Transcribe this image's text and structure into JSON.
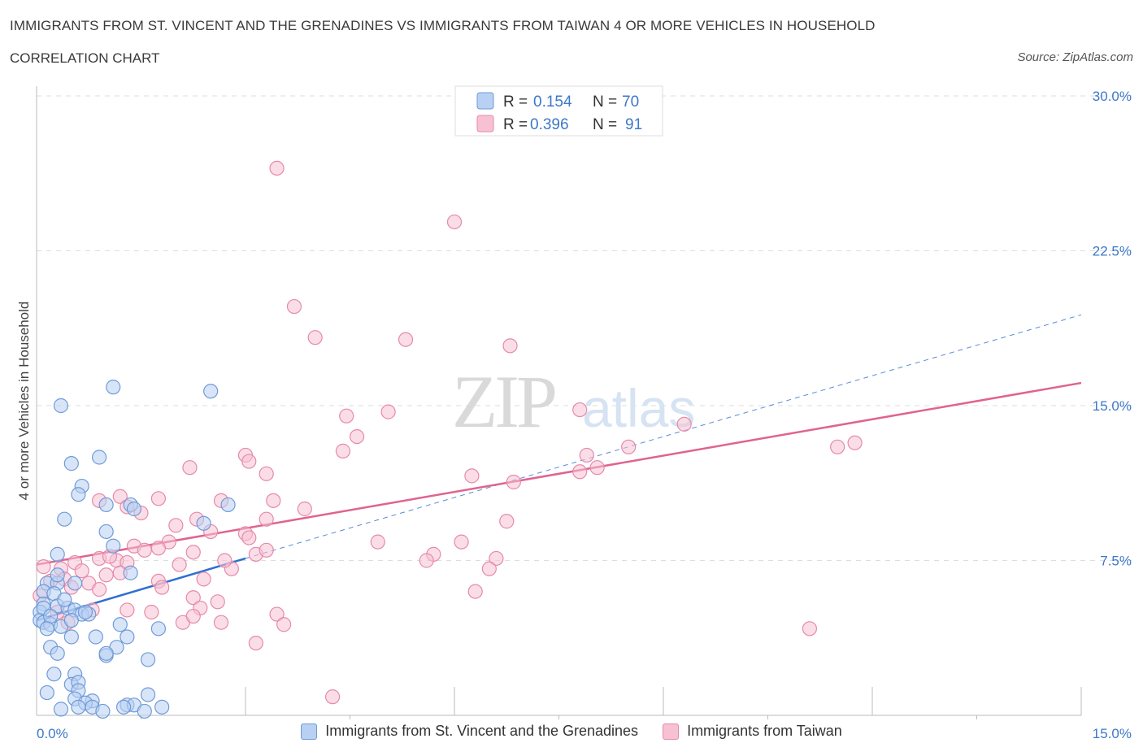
{
  "header": {
    "title": "IMMIGRANTS FROM ST. VINCENT AND THE GRENADINES VS IMMIGRANTS FROM TAIWAN 4 OR MORE VEHICLES IN HOUSEHOLD",
    "subtitle": "CORRELATION CHART",
    "source": "Source: ZipAtlas.com"
  },
  "watermark": {
    "zip": "ZIP",
    "atlas": "atlas"
  },
  "colors": {
    "blue_fill": "#b8d0f3",
    "blue_stroke": "#6f9bd8",
    "blue_line": "#2f6fd0",
    "pink_fill": "#f7c1d3",
    "pink_stroke": "#e58aaa",
    "pink_line": "#e0638f",
    "tick": "#3d78c8",
    "grid": "#dddddd"
  },
  "chart_data": {
    "type": "scatter",
    "xlabel": "",
    "ylabel": "4 or more Vehicles in Household",
    "xlim": [
      0,
      15
    ],
    "ylim": [
      0,
      30
    ],
    "x_tick_labels": [
      "0.0%",
      "15.0%"
    ],
    "y_ticks": [
      7.5,
      15,
      22.5,
      30
    ],
    "y_tick_labels": [
      "7.5%",
      "15.0%",
      "22.5%",
      "30.0%"
    ],
    "grid": "horizontal dashed",
    "legend": [
      {
        "r_label": "R =",
        "r_value": "0.154",
        "n_label": "N =",
        "n_value": "70"
      },
      {
        "r_label": "R =",
        "r_value": "0.396",
        "n_label": "N =",
        "n_value": "91"
      }
    ],
    "series": [
      {
        "name": "Immigrants from St. Vincent and the Grenadines",
        "color": "#6f9bd8",
        "trend": {
          "x": [
            0.0,
            3.0
          ],
          "y": [
            4.6,
            7.6
          ],
          "extended_to": [
            15.0,
            19.4
          ]
        },
        "points": [
          [
            0.35,
            15.0
          ],
          [
            1.1,
            15.9
          ],
          [
            2.5,
            15.7
          ],
          [
            0.5,
            12.2
          ],
          [
            0.9,
            12.5
          ],
          [
            0.65,
            11.1
          ],
          [
            0.6,
            10.7
          ],
          [
            1.0,
            10.2
          ],
          [
            1.35,
            10.2
          ],
          [
            2.75,
            10.2
          ],
          [
            1.4,
            10.0
          ],
          [
            0.4,
            9.5
          ],
          [
            2.4,
            9.3
          ],
          [
            1.0,
            8.9
          ],
          [
            1.1,
            8.2
          ],
          [
            0.3,
            7.8
          ],
          [
            0.15,
            6.4
          ],
          [
            0.3,
            6.4
          ],
          [
            0.55,
            6.4
          ],
          [
            0.1,
            6.0
          ],
          [
            0.25,
            5.9
          ],
          [
            1.35,
            6.9
          ],
          [
            0.1,
            5.4
          ],
          [
            0.3,
            5.3
          ],
          [
            0.45,
            5.2
          ],
          [
            0.55,
            5.1
          ],
          [
            0.05,
            5.0
          ],
          [
            0.65,
            4.9
          ],
          [
            0.75,
            4.9
          ],
          [
            0.05,
            4.6
          ],
          [
            0.1,
            4.5
          ],
          [
            0.2,
            4.4
          ],
          [
            0.35,
            4.3
          ],
          [
            1.2,
            4.4
          ],
          [
            1.75,
            4.2
          ],
          [
            0.5,
            3.8
          ],
          [
            0.85,
            3.8
          ],
          [
            1.3,
            3.8
          ],
          [
            0.2,
            3.3
          ],
          [
            1.15,
            3.3
          ],
          [
            0.3,
            3.0
          ],
          [
            1.0,
            2.9
          ],
          [
            1.6,
            2.7
          ],
          [
            0.25,
            2.0
          ],
          [
            0.55,
            2.0
          ],
          [
            0.5,
            1.5
          ],
          [
            0.6,
            1.6
          ],
          [
            0.6,
            1.2
          ],
          [
            0.15,
            1.1
          ],
          [
            0.55,
            0.8
          ],
          [
            0.8,
            0.7
          ],
          [
            1.6,
            1.0
          ],
          [
            0.7,
            0.6
          ],
          [
            0.6,
            0.4
          ],
          [
            0.35,
            0.3
          ],
          [
            0.8,
            0.4
          ],
          [
            1.3,
            0.5
          ],
          [
            1.4,
            0.5
          ],
          [
            1.25,
            0.4
          ],
          [
            1.8,
            0.4
          ],
          [
            0.95,
            0.2
          ],
          [
            1.55,
            0.2
          ],
          [
            0.1,
            5.2
          ],
          [
            0.2,
            4.8
          ],
          [
            0.4,
            5.6
          ],
          [
            0.7,
            5.0
          ],
          [
            0.15,
            4.2
          ],
          [
            0.5,
            4.6
          ],
          [
            1.0,
            3.0
          ],
          [
            0.3,
            6.8
          ]
        ]
      },
      {
        "name": "Immigrants from Taiwan",
        "color": "#e58aaa",
        "trend": {
          "x": [
            0.0,
            15.0
          ],
          "y": [
            7.3,
            16.1
          ]
        },
        "points": [
          [
            3.45,
            26.5
          ],
          [
            6.0,
            23.9
          ],
          [
            3.7,
            19.8
          ],
          [
            4.0,
            18.3
          ],
          [
            5.3,
            18.2
          ],
          [
            6.8,
            17.9
          ],
          [
            7.8,
            14.8
          ],
          [
            9.3,
            14.1
          ],
          [
            4.45,
            14.5
          ],
          [
            5.05,
            14.7
          ],
          [
            4.6,
            13.5
          ],
          [
            4.4,
            12.8
          ],
          [
            7.9,
            12.6
          ],
          [
            8.5,
            13.0
          ],
          [
            11.5,
            13.0
          ],
          [
            11.75,
            13.2
          ],
          [
            3.0,
            12.6
          ],
          [
            3.05,
            12.3
          ],
          [
            2.2,
            12.0
          ],
          [
            3.3,
            11.7
          ],
          [
            6.25,
            11.6
          ],
          [
            7.8,
            11.8
          ],
          [
            8.05,
            12.0
          ],
          [
            6.85,
            11.3
          ],
          [
            0.9,
            10.4
          ],
          [
            1.2,
            10.6
          ],
          [
            1.3,
            10.1
          ],
          [
            1.75,
            10.5
          ],
          [
            2.65,
            10.4
          ],
          [
            3.4,
            10.4
          ],
          [
            3.85,
            10.0
          ],
          [
            1.5,
            9.8
          ],
          [
            2.3,
            9.5
          ],
          [
            3.3,
            9.5
          ],
          [
            6.75,
            9.4
          ],
          [
            2.0,
            9.2
          ],
          [
            2.5,
            8.9
          ],
          [
            3.0,
            8.8
          ],
          [
            3.05,
            8.6
          ],
          [
            1.9,
            8.4
          ],
          [
            4.9,
            8.4
          ],
          [
            6.1,
            8.4
          ],
          [
            1.4,
            8.2
          ],
          [
            1.55,
            8.0
          ],
          [
            2.25,
            7.9
          ],
          [
            3.15,
            7.8
          ],
          [
            5.7,
            7.8
          ],
          [
            5.6,
            7.5
          ],
          [
            6.6,
            7.6
          ],
          [
            6.5,
            7.1
          ],
          [
            0.1,
            7.2
          ],
          [
            0.35,
            7.1
          ],
          [
            0.55,
            7.4
          ],
          [
            0.9,
            7.6
          ],
          [
            1.15,
            7.5
          ],
          [
            1.3,
            7.4
          ],
          [
            2.05,
            7.3
          ],
          [
            2.8,
            7.1
          ],
          [
            0.2,
            6.5
          ],
          [
            0.4,
            6.6
          ],
          [
            0.75,
            6.4
          ],
          [
            0.9,
            6.1
          ],
          [
            1.75,
            6.5
          ],
          [
            1.8,
            6.2
          ],
          [
            6.3,
            6.0
          ],
          [
            2.25,
            5.7
          ],
          [
            2.35,
            5.2
          ],
          [
            2.6,
            5.5
          ],
          [
            3.45,
            4.9
          ],
          [
            1.3,
            5.1
          ],
          [
            1.65,
            5.0
          ],
          [
            0.3,
            5.0
          ],
          [
            0.8,
            5.1
          ],
          [
            0.45,
            4.5
          ],
          [
            2.1,
            4.5
          ],
          [
            2.65,
            4.5
          ],
          [
            3.55,
            4.4
          ],
          [
            2.25,
            4.8
          ],
          [
            11.1,
            4.2
          ],
          [
            3.15,
            3.5
          ],
          [
            4.25,
            0.9
          ],
          [
            0.05,
            5.8
          ],
          [
            0.65,
            7.0
          ],
          [
            1.0,
            6.8
          ],
          [
            1.2,
            6.9
          ],
          [
            2.7,
            7.5
          ],
          [
            3.3,
            8.0
          ],
          [
            1.75,
            8.1
          ],
          [
            2.4,
            6.6
          ],
          [
            1.05,
            7.7
          ],
          [
            0.5,
            6.2
          ]
        ]
      }
    ]
  }
}
